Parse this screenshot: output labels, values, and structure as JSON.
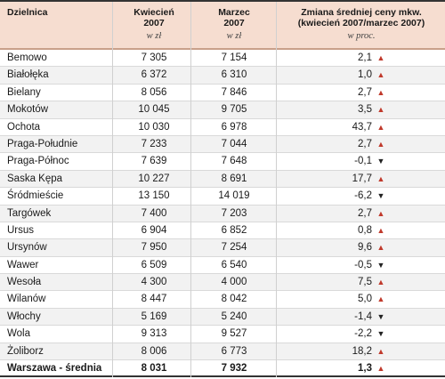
{
  "header": {
    "district": "Dzielnica",
    "april": "Kwiecień\n2007",
    "april_unit": "w zł",
    "march": "Marzec\n2007",
    "march_unit": "w zł",
    "change": "Zmiana średniej ceny mkw.\n(kwiecień 2007/marzec 2007)",
    "change_unit": "w proc."
  },
  "rows": [
    {
      "district": "Bemowo",
      "april": "7 305",
      "march": "7 154",
      "change": "2,1",
      "dir": "up"
    },
    {
      "district": "Białołęka",
      "april": "6 372",
      "march": "6 310",
      "change": "1,0",
      "dir": "up"
    },
    {
      "district": "Bielany",
      "april": "8 056",
      "march": "7 846",
      "change": "2,7",
      "dir": "up"
    },
    {
      "district": "Mokotów",
      "april": "10 045",
      "march": "9 705",
      "change": "3,5",
      "dir": "up"
    },
    {
      "district": "Ochota",
      "april": "10 030",
      "march": "6 978",
      "change": "43,7",
      "dir": "up"
    },
    {
      "district": "Praga-Południe",
      "april": "7 233",
      "march": "7 044",
      "change": "2,7",
      "dir": "up"
    },
    {
      "district": "Praga-Północ",
      "april": "7 639",
      "march": "7 648",
      "change": "-0,1",
      "dir": "down"
    },
    {
      "district": "Saska Kępa",
      "april": "10 227",
      "march": "8 691",
      "change": "17,7",
      "dir": "up"
    },
    {
      "district": "Śródmieście",
      "april": "13 150",
      "march": "14 019",
      "change": "-6,2",
      "dir": "down"
    },
    {
      "district": "Targówek",
      "april": "7 400",
      "march": "7 203",
      "change": "2,7",
      "dir": "up"
    },
    {
      "district": "Ursus",
      "april": "6 904",
      "march": "6 852",
      "change": "0,8",
      "dir": "up"
    },
    {
      "district": "Ursynów",
      "april": "7 950",
      "march": "7 254",
      "change": "9,6",
      "dir": "up"
    },
    {
      "district": "Wawer",
      "april": "6 509",
      "march": "6 540",
      "change": "-0,5",
      "dir": "down"
    },
    {
      "district": "Wesoła",
      "april": "4 300",
      "march": "4 000",
      "change": "7,5",
      "dir": "up"
    },
    {
      "district": "Wilanów",
      "april": "8 447",
      "march": "8 042",
      "change": "5,0",
      "dir": "up"
    },
    {
      "district": "Włochy",
      "april": "5 169",
      "march": "5 240",
      "change": "-1,4",
      "dir": "down"
    },
    {
      "district": "Wola",
      "april": "9 313",
      "march": "9 527",
      "change": "-2,2",
      "dir": "down"
    },
    {
      "district": "Żoliborz",
      "april": "8 006",
      "march": "6 773",
      "change": "18,2",
      "dir": "up"
    }
  ],
  "total": {
    "district": "Warszawa - średnia",
    "april": "8 031",
    "march": "7 932",
    "change": "1,3",
    "dir": "up"
  },
  "icons": {
    "up": "arrow-up-icon",
    "down": "arrow-down-icon",
    "up_glyph": "▲",
    "down_glyph": "▼"
  },
  "colors": {
    "header_bg": "#f6ddd0",
    "up_arrow": "#c0392b",
    "down_arrow": "#222222"
  }
}
